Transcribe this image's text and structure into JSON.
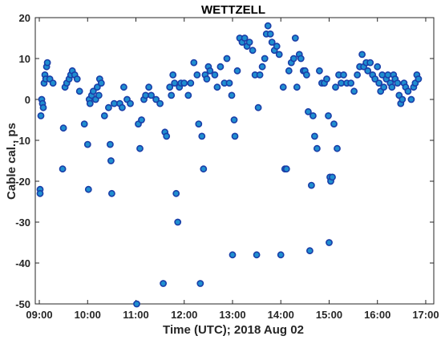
{
  "chart_data": {
    "type": "scatter",
    "title": "WETTZELL",
    "xlabel": "Time (UTC); 2018 Aug 02",
    "ylabel": "Cable cal., ps",
    "xlim": [
      "08:55",
      "17:10"
    ],
    "ylim": [
      -50,
      20
    ],
    "grid": false,
    "marker_color": "#1f8fd0",
    "marker_edge_color": "#1a3ea8",
    "x_ticks": [
      "09:00",
      "10:00",
      "11:00",
      "12:00",
      "13:00",
      "14:00",
      "15:00",
      "16:00",
      "17:00"
    ],
    "y_ticks": [
      20,
      10,
      0,
      -10,
      -20,
      -30,
      -40,
      -50
    ],
    "points": [
      [
        "09:01",
        -22
      ],
      [
        "09:01",
        -23
      ],
      [
        "09:02",
        -4
      ],
      [
        "09:03",
        0
      ],
      [
        "09:04",
        -1
      ],
      [
        "09:05",
        -2
      ],
      [
        "09:06",
        4
      ],
      [
        "09:07",
        6
      ],
      [
        "09:08",
        5
      ],
      [
        "09:09",
        8
      ],
      [
        "09:10",
        9
      ],
      [
        "09:13",
        5
      ],
      [
        "09:17",
        4
      ],
      [
        "09:29",
        -17
      ],
      [
        "09:30",
        -7
      ],
      [
        "09:32",
        3
      ],
      [
        "09:34",
        4
      ],
      [
        "09:37",
        5
      ],
      [
        "09:39",
        6
      ],
      [
        "09:41",
        7
      ],
      [
        "09:44",
        6
      ],
      [
        "09:47",
        5
      ],
      [
        "09:50",
        2
      ],
      [
        "09:56",
        -6
      ],
      [
        "10:00",
        -11
      ],
      [
        "10:01",
        -22
      ],
      [
        "10:02",
        0
      ],
      [
        "10:03",
        -1
      ],
      [
        "10:05",
        1
      ],
      [
        "10:07",
        2
      ],
      [
        "10:10",
        0
      ],
      [
        "10:12",
        3
      ],
      [
        "10:14",
        1
      ],
      [
        "10:15",
        5
      ],
      [
        "10:17",
        4
      ],
      [
        "10:21",
        -4
      ],
      [
        "10:26",
        -2
      ],
      [
        "10:28",
        -11
      ],
      [
        "10:29",
        -15
      ],
      [
        "10:30",
        -23
      ],
      [
        "10:33",
        -1
      ],
      [
        "10:40",
        -1
      ],
      [
        "10:43",
        -2
      ],
      [
        "10:45",
        3
      ],
      [
        "10:49",
        0
      ],
      [
        "10:53",
        -1
      ],
      [
        "11:01",
        -50
      ],
      [
        "11:03",
        -6
      ],
      [
        "11:05",
        -12
      ],
      [
        "11:07",
        -5
      ],
      [
        "11:10",
        0
      ],
      [
        "11:12",
        1
      ],
      [
        "11:16",
        3
      ],
      [
        "11:19",
        1
      ],
      [
        "11:25",
        0
      ],
      [
        "11:30",
        -1
      ],
      [
        "11:34",
        -45
      ],
      [
        "11:36",
        -8
      ],
      [
        "11:38",
        -9
      ],
      [
        "11:42",
        3
      ],
      [
        "11:44",
        1
      ],
      [
        "11:46",
        6
      ],
      [
        "11:48",
        4
      ],
      [
        "11:50",
        -23
      ],
      [
        "11:52",
        -30
      ],
      [
        "11:54",
        3
      ],
      [
        "11:56",
        4
      ],
      [
        "12:00",
        4
      ],
      [
        "12:05",
        1
      ],
      [
        "12:08",
        4
      ],
      [
        "12:12",
        9
      ],
      [
        "12:16",
        6
      ],
      [
        "12:18",
        -6
      ],
      [
        "12:20",
        -45
      ],
      [
        "12:22",
        -9
      ],
      [
        "12:24",
        -17
      ],
      [
        "12:26",
        6
      ],
      [
        "12:28",
        5
      ],
      [
        "12:30",
        8
      ],
      [
        "12:32",
        7
      ],
      [
        "12:38",
        6
      ],
      [
        "12:41",
        3
      ],
      [
        "12:45",
        8
      ],
      [
        "12:50",
        4
      ],
      [
        "12:53",
        10
      ],
      [
        "12:56",
        4
      ],
      [
        "12:59",
        1
      ],
      [
        "13:00",
        -38
      ],
      [
        "13:02",
        -5
      ],
      [
        "13:03",
        -9
      ],
      [
        "13:06",
        7
      ],
      [
        "13:09",
        15
      ],
      [
        "13:12",
        14
      ],
      [
        "13:15",
        15
      ],
      [
        "13:18",
        13
      ],
      [
        "13:21",
        14
      ],
      [
        "13:25",
        12
      ],
      [
        "13:28",
        6
      ],
      [
        "13:30",
        -38
      ],
      [
        "13:32",
        -2
      ],
      [
        "13:34",
        6
      ],
      [
        "13:37",
        8
      ],
      [
        "13:40",
        10
      ],
      [
        "13:42",
        16
      ],
      [
        "13:44",
        18
      ],
      [
        "13:47",
        16
      ],
      [
        "13:49",
        14
      ],
      [
        "13:52",
        12
      ],
      [
        "13:55",
        13
      ],
      [
        "13:58",
        11
      ],
      [
        "14:00",
        -38
      ],
      [
        "14:03",
        3
      ],
      [
        "14:05",
        -17
      ],
      [
        "14:07",
        -17
      ],
      [
        "14:10",
        7
      ],
      [
        "14:13",
        9
      ],
      [
        "14:16",
        10
      ],
      [
        "14:18",
        15
      ],
      [
        "14:20",
        3
      ],
      [
        "14:23",
        11
      ],
      [
        "14:25",
        10
      ],
      [
        "14:28",
        7
      ],
      [
        "14:30",
        7
      ],
      [
        "14:32",
        6
      ],
      [
        "14:34",
        -3
      ],
      [
        "14:36",
        -37
      ],
      [
        "14:38",
        -21
      ],
      [
        "14:40",
        -4
      ],
      [
        "14:42",
        -9
      ],
      [
        "14:45",
        -12
      ],
      [
        "14:48",
        7
      ],
      [
        "14:51",
        4
      ],
      [
        "14:54",
        4
      ],
      [
        "14:57",
        5
      ],
      [
        "14:59",
        -4
      ],
      [
        "15:00",
        -35
      ],
      [
        "15:01",
        -19
      ],
      [
        "15:02",
        -20
      ],
      [
        "15:04",
        -19
      ],
      [
        "15:06",
        -6
      ],
      [
        "15:08",
        3
      ],
      [
        "15:10",
        -12
      ],
      [
        "15:12",
        6
      ],
      [
        "15:15",
        4
      ],
      [
        "15:18",
        6
      ],
      [
        "15:22",
        4
      ],
      [
        "15:27",
        4
      ],
      [
        "15:31",
        2
      ],
      [
        "15:35",
        6
      ],
      [
        "15:38",
        8
      ],
      [
        "15:41",
        11
      ],
      [
        "15:43",
        8
      ],
      [
        "15:46",
        9
      ],
      [
        "15:48",
        7
      ],
      [
        "15:51",
        9
      ],
      [
        "15:54",
        6
      ],
      [
        "15:57",
        5
      ],
      [
        "16:00",
        8
      ],
      [
        "16:02",
        4
      ],
      [
        "16:04",
        2
      ],
      [
        "16:06",
        6
      ],
      [
        "16:08",
        3
      ],
      [
        "16:11",
        5
      ],
      [
        "16:13",
        6
      ],
      [
        "16:16",
        4
      ],
      [
        "16:18",
        3
      ],
      [
        "16:20",
        6
      ],
      [
        "16:22",
        5
      ],
      [
        "16:25",
        4
      ],
      [
        "16:27",
        1
      ],
      [
        "16:29",
        -1
      ],
      [
        "16:31",
        0
      ],
      [
        "16:33",
        4
      ],
      [
        "16:35",
        3
      ],
      [
        "16:38",
        2
      ],
      [
        "16:42",
        0
      ],
      [
        "16:45",
        3
      ],
      [
        "16:47",
        4
      ],
      [
        "16:49",
        6
      ],
      [
        "16:51",
        5
      ]
    ]
  }
}
